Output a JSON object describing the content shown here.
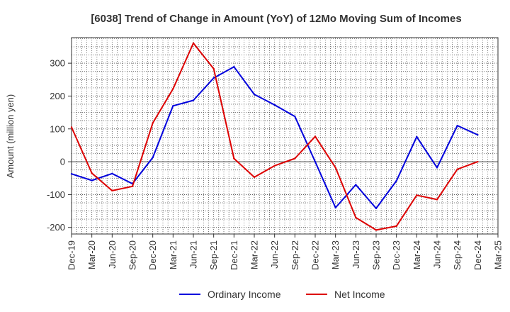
{
  "chart_data": {
    "type": "line",
    "title": "[6038]  Trend of Change in Amount (YoY) of 12Mo Moving Sum of Incomes",
    "xlabel": "",
    "ylabel": "Amount (million yen)",
    "categories": [
      "Dec-19",
      "Mar-20",
      "Jun-20",
      "Sep-20",
      "Dec-20",
      "Mar-21",
      "Jun-21",
      "Sep-21",
      "Dec-21",
      "Mar-22",
      "Jun-22",
      "Sep-22",
      "Dec-22",
      "Mar-23",
      "Jun-23",
      "Sep-23",
      "Dec-23",
      "Mar-24",
      "Jun-24",
      "Sep-24",
      "Dec-24",
      "Mar-25"
    ],
    "ylim": [
      -220,
      378
    ],
    "yticks": [
      -200,
      -100,
      0,
      100,
      200,
      300
    ],
    "grid": true,
    "legend_position": "bottom",
    "series": [
      {
        "name": "Ordinary Income",
        "color": "#0000dd",
        "values": [
          -37,
          -57,
          -36,
          -67,
          13,
          170,
          187,
          255,
          289,
          205,
          173,
          138,
          0,
          -140,
          -70,
          -142,
          -58,
          76,
          -18,
          110,
          82,
          null
        ]
      },
      {
        "name": "Net Income",
        "color": "#dd0000",
        "values": [
          105,
          -35,
          -88,
          -75,
          118,
          222,
          361,
          283,
          10,
          -47,
          -12,
          10,
          77,
          -18,
          -170,
          -208,
          -196,
          -102,
          -115,
          -23,
          0,
          null
        ]
      }
    ]
  }
}
